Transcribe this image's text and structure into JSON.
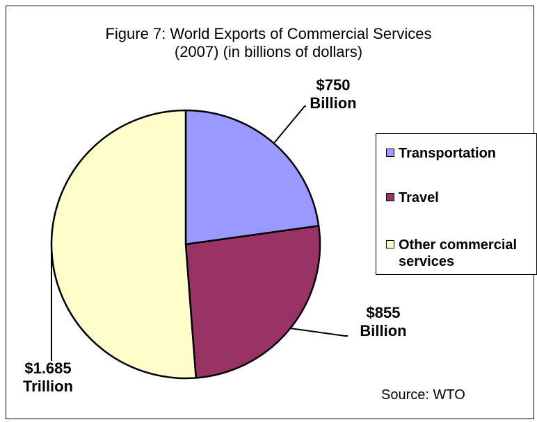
{
  "chart_data": {
    "type": "pie",
    "title_line1": "Figure 7: World Exports of Commercial Services",
    "title_line2": "(2007) (in billions of dollars)",
    "slices": [
      {
        "name": "Transportation",
        "value": 750,
        "label_line1": "$750",
        "label_line2": "Billion",
        "color": "#9999ff"
      },
      {
        "name": "Travel",
        "value": 855,
        "label_line1": "$855",
        "label_line2": "Billion",
        "color": "#993366"
      },
      {
        "name": "Other commercial services",
        "value": 1685,
        "label_line1": "$1.685",
        "label_line2": "Trillion",
        "color": "#ffffcc"
      }
    ],
    "legend": {
      "placement": "right",
      "items": [
        {
          "line1": "Transportation",
          "line2": ""
        },
        {
          "line1": "Travel",
          "line2": ""
        },
        {
          "line1": "Other commercial",
          "line2": "services"
        }
      ]
    },
    "source": "Source: WTO"
  }
}
